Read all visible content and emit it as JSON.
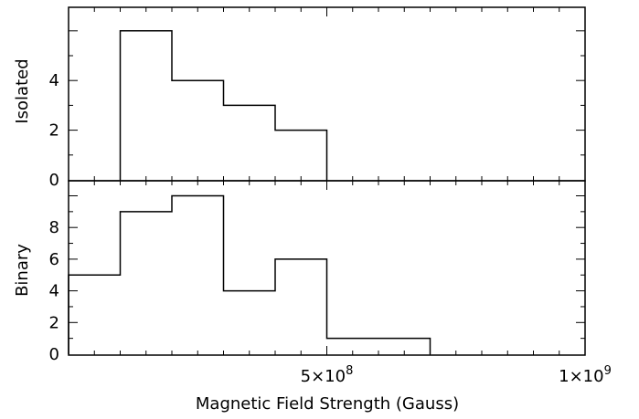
{
  "chart_data": [
    {
      "type": "histogram",
      "panel": "top",
      "ylabel": "Isolated",
      "bin_edges": [
        100000000.0,
        200000000.0,
        300000000.0,
        400000000.0,
        500000000.0
      ],
      "values": [
        6,
        4,
        3,
        2
      ],
      "xlim": [
        0,
        1000000000
      ],
      "ylim": [
        0,
        6
      ],
      "y_ticks": [
        {
          "value": 0,
          "label": "0"
        },
        {
          "value": 2,
          "label": "2"
        },
        {
          "value": 4,
          "label": "4"
        }
      ]
    },
    {
      "type": "histogram",
      "panel": "bottom",
      "ylabel": "Binary",
      "xlabel": "Magnetic Field Strength (Gauss)",
      "bin_edges": [
        0,
        100000000.0,
        200000000.0,
        300000000.0,
        400000000.0,
        500000000.0,
        600000000.0,
        700000000.0
      ],
      "values": [
        5,
        9,
        10,
        4,
        6,
        1,
        1
      ],
      "xlim": [
        0,
        1000000000
      ],
      "ylim": [
        0,
        10
      ],
      "y_ticks": [
        {
          "value": 0,
          "label": "0"
        },
        {
          "value": 2,
          "label": "2"
        },
        {
          "value": 4,
          "label": "4"
        },
        {
          "value": 6,
          "label": "6"
        },
        {
          "value": 8,
          "label": "8"
        }
      ],
      "x_tick_labels": [
        {
          "value": 500000000,
          "mantissa": "5×10",
          "exp": "8"
        },
        {
          "value": 1000000000,
          "mantissa": "1×10",
          "exp": "9"
        }
      ]
    }
  ]
}
